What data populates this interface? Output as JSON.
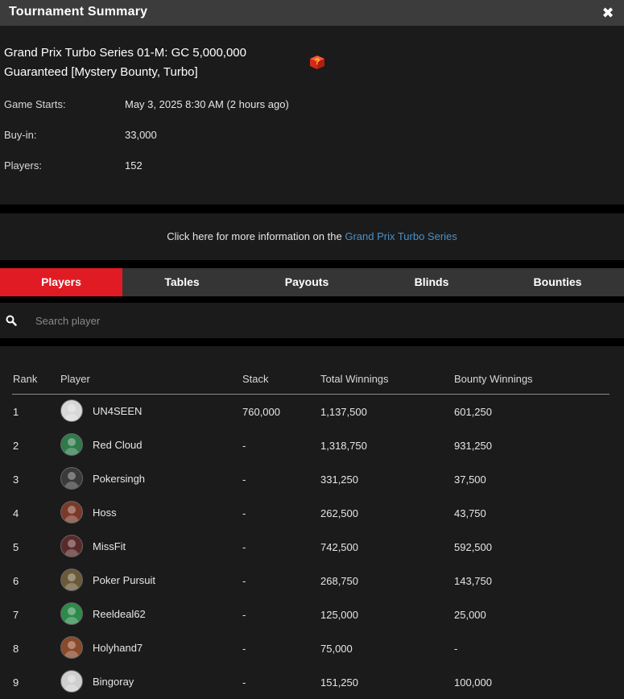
{
  "window": {
    "title": "Tournament Summary",
    "close_glyph": "✖"
  },
  "tournament": {
    "name": "Grand Prix Turbo Series 01-M: GC 5,000,000 Guaranteed [Mystery Bounty, Turbo]",
    "mystery_icon": "mystery-box-icon",
    "details": [
      {
        "label": "Game Starts:",
        "value": "May 3, 2025 8:30 AM (2 hours ago)"
      },
      {
        "label": "Buy-in:",
        "value": "33,000"
      },
      {
        "label": "Players:",
        "value": "152"
      }
    ]
  },
  "info_link": {
    "prefix": "Click here for more information on the ",
    "link_text": "Grand Prix Turbo Series"
  },
  "tabs": [
    {
      "label": "Players",
      "active": true
    },
    {
      "label": "Tables",
      "active": false
    },
    {
      "label": "Payouts",
      "active": false
    },
    {
      "label": "Blinds",
      "active": false
    },
    {
      "label": "Bounties",
      "active": false
    }
  ],
  "search": {
    "placeholder": "Search player",
    "value": ""
  },
  "table": {
    "headers": {
      "rank": "Rank",
      "player": "Player",
      "stack": "Stack",
      "total": "Total Winnings",
      "bounty": "Bounty Winnings"
    },
    "rows": [
      {
        "rank": "1",
        "player": "UN4SEEN",
        "stack": "760,000",
        "total": "1,137,500",
        "bounty": "601,250",
        "avatar_color": "#d8d8d8"
      },
      {
        "rank": "2",
        "player": "Red Cloud",
        "stack": "-",
        "total": "1,318,750",
        "bounty": "931,250",
        "avatar_color": "#2f7a4a"
      },
      {
        "rank": "3",
        "player": "Pokersingh",
        "stack": "-",
        "total": "331,250",
        "bounty": "37,500",
        "avatar_color": "#3a3a3a"
      },
      {
        "rank": "4",
        "player": "Hoss",
        "stack": "-",
        "total": "262,500",
        "bounty": "43,750",
        "avatar_color": "#7a3a2a"
      },
      {
        "rank": "5",
        "player": "MissFit",
        "stack": "-",
        "total": "742,500",
        "bounty": "592,500",
        "avatar_color": "#5a2a2a"
      },
      {
        "rank": "6",
        "player": "Poker Pursuit",
        "stack": "-",
        "total": "268,750",
        "bounty": "143,750",
        "avatar_color": "#6a5a3a"
      },
      {
        "rank": "7",
        "player": "Reeldeal62",
        "stack": "-",
        "total": "125,000",
        "bounty": "25,000",
        "avatar_color": "#2e8a4a"
      },
      {
        "rank": "8",
        "player": "Holyhand7",
        "stack": "-",
        "total": "75,000",
        "bounty": "-",
        "avatar_color": "#8a4a2a"
      },
      {
        "rank": "9",
        "player": "Bingoray",
        "stack": "-",
        "total": "151,250",
        "bounty": "100,000",
        "avatar_color": "#cfcfcf"
      }
    ]
  }
}
